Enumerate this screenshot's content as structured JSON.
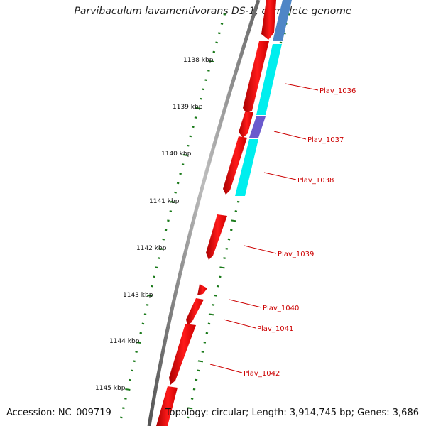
{
  "title": "Parvibaculum lavamentivorans DS-1, complete genome",
  "accession": "Accession: NC_009719",
  "topology": "Topology: circular; Length: 3,914,745 bp; Genes: 3,686",
  "ticks": [
    "1138 kbp",
    "1139 kbp",
    "1140 kbp",
    "1141 kbp",
    "1142 kbp",
    "1143 kbp",
    "1144 kbp",
    "1145 kbp"
  ],
  "gene_labels": [
    "Plav_1036",
    "Plav_1037",
    "Plav_1038",
    "Plav_1039",
    "Plav_1040",
    "Plav_1041",
    "Plav_1042"
  ],
  "colors": {
    "backbone": "#808080",
    "cds": "#ee0000",
    "cog_cyan": "#00eeee",
    "cog_steel": "#4f86c6",
    "cog_purple": "#6a5acd",
    "tick": "#1a7a1a",
    "label": "#cc0000"
  }
}
